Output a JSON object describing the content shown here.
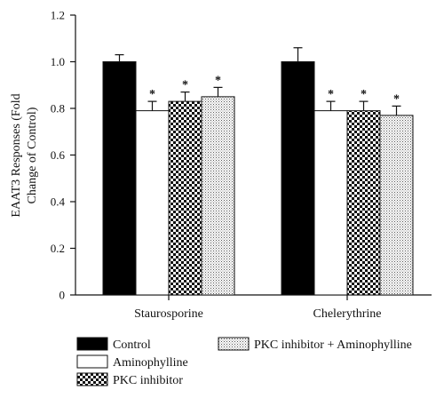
{
  "chart_data": {
    "type": "bar",
    "title": "",
    "xlabel": "",
    "ylabel_lines": [
      "EAAT3 Responses (Fold",
      "Change of Control)"
    ],
    "ylim": [
      0,
      1.2
    ],
    "yticks": [
      "0",
      "0.2",
      "0.4",
      "0.6",
      "0.8",
      "1.0",
      "1.2"
    ],
    "ytick_values": [
      0,
      0.2,
      0.4,
      0.6,
      0.8,
      1.0,
      1.2
    ],
    "categories": [
      "Staurosporine",
      "Chelerythrine"
    ],
    "series": [
      {
        "name": "Control",
        "values": [
          1.0,
          1.0
        ],
        "errors": [
          0.03,
          0.06
        ],
        "significant": [
          false,
          false
        ],
        "fill": "solid"
      },
      {
        "name": "Aminophylline",
        "values": [
          0.79,
          0.79
        ],
        "errors": [
          0.04,
          0.04
        ],
        "significant": [
          true,
          true
        ],
        "fill": "white"
      },
      {
        "name": "PKC inhibitor",
        "values": [
          0.83,
          0.79
        ],
        "errors": [
          0.04,
          0.04
        ],
        "significant": [
          true,
          true
        ],
        "fill": "checker"
      },
      {
        "name": "PKC inhibitor + Aminophylline",
        "values": [
          0.85,
          0.77
        ],
        "errors": [
          0.04,
          0.04
        ],
        "significant": [
          true,
          true
        ],
        "fill": "dots"
      }
    ],
    "significance_marker": "*",
    "legend_position": "bottom",
    "grid": false
  }
}
